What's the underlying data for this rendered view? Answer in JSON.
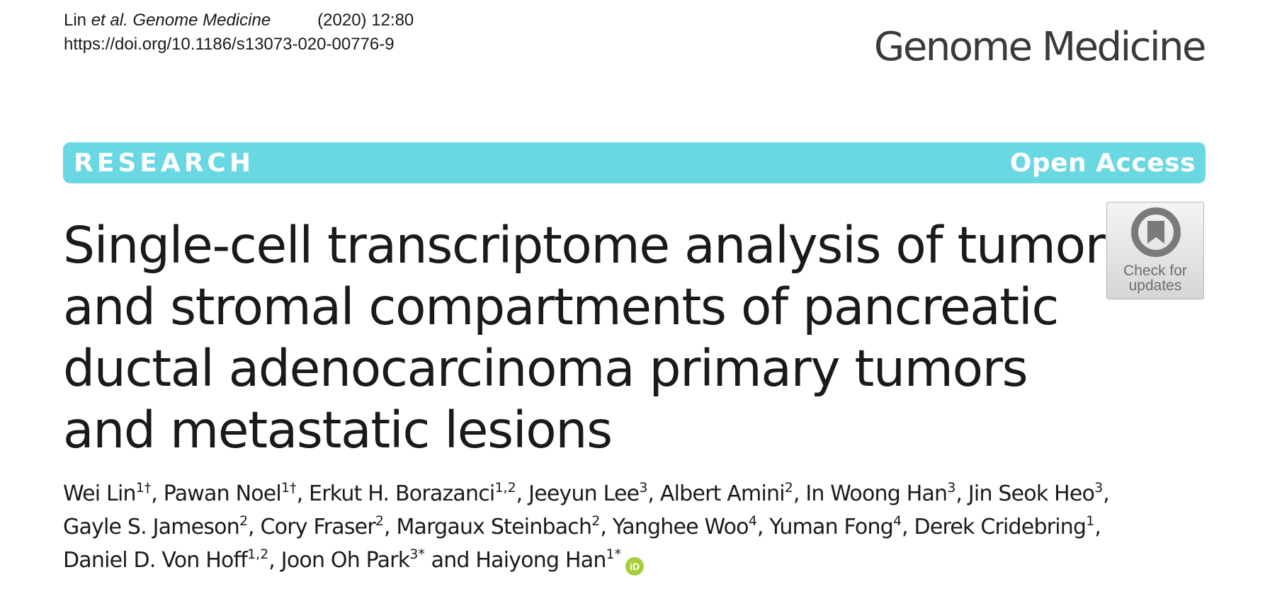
{
  "header": {
    "citation_author": "Lin",
    "citation_etal_journal": "et al. Genome Medicine",
    "citation_year_volume": "(2020) 12:80",
    "doi": "https://doi.org/10.1186/s13073-020-00776-9",
    "journal_name": "Genome Medicine"
  },
  "banner": {
    "category": "RESEARCH",
    "access": "Open Access",
    "color": "#69d8e3"
  },
  "title_lines": [
    "Single-cell transcriptome analysis of tumor",
    "and stromal compartments of pancreatic",
    "ductal adenocarcinoma primary tumors",
    "and metastatic lesions"
  ],
  "check_updates": {
    "line1": "Check for",
    "line2": "updates",
    "icon": "bookmark-ring-icon"
  },
  "authors": [
    {
      "name": "Wei Lin",
      "sup": "1†",
      "sep": ", "
    },
    {
      "name": "Pawan Noel",
      "sup": "1†",
      "sep": ", "
    },
    {
      "name": "Erkut H. Borazanci",
      "sup": "1,2",
      "sep": ", "
    },
    {
      "name": "Jeeyun Lee",
      "sup": "3",
      "sep": ", "
    },
    {
      "name": "Albert Amini",
      "sup": "2",
      "sep": ", "
    },
    {
      "name": "In Woong Han",
      "sup": "3",
      "sep": ", "
    },
    {
      "name": "Jin Seok Heo",
      "sup": "3",
      "sep": ","
    },
    {
      "name": "Gayle S. Jameson",
      "sup": "2",
      "sep": ", "
    },
    {
      "name": "Cory Fraser",
      "sup": "2",
      "sep": ", "
    },
    {
      "name": "Margaux Steinbach",
      "sup": "2",
      "sep": ", "
    },
    {
      "name": "Yanghee Woo",
      "sup": "4",
      "sep": ", "
    },
    {
      "name": "Yuman Fong",
      "sup": "4",
      "sep": ", "
    },
    {
      "name": "Derek Cridebring",
      "sup": "1",
      "sep": ","
    },
    {
      "name": "Daniel D. Von Hoff",
      "sup": "1,2",
      "sep": ", "
    },
    {
      "name": "Joon Oh Park",
      "sup": "3*",
      "sep": " and "
    },
    {
      "name": "Haiyong Han",
      "sup": "1*",
      "sep": ""
    }
  ],
  "orcid": {
    "label": "iD",
    "color": "#a6ce39",
    "icon": "orcid-icon"
  }
}
